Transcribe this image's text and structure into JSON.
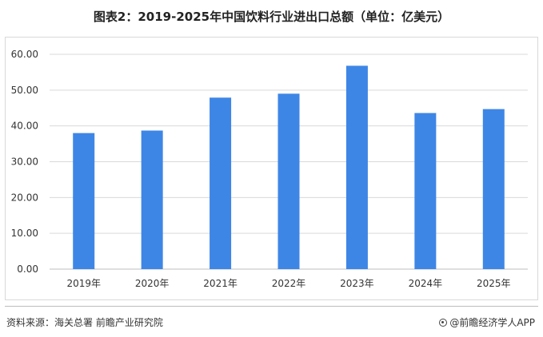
{
  "title": "图表2：2019-2025年中国饮料行业进出口总额（单位：亿美元）",
  "source": "资料来源：海关总署  前瞻产业研究院",
  "brand": "@前瞻经济学人APP",
  "colors": {
    "bar": "#3E86E6",
    "grid": "#d9d9d9",
    "axis": "#bfbfbf"
  },
  "chart_data": {
    "type": "bar",
    "title": "图表2：2019-2025年中国饮料行业进出口总额（单位：亿美元）",
    "categories": [
      "2019年",
      "2020年",
      "2021年",
      "2022年",
      "2023年",
      "2024年",
      "2025年"
    ],
    "values": [
      38.0,
      38.7,
      47.9,
      49.0,
      56.8,
      43.6,
      44.7
    ],
    "yticks": [
      "0.00",
      "10.00",
      "20.00",
      "30.00",
      "40.00",
      "50.00",
      "60.00"
    ],
    "ylim": [
      0,
      60
    ],
    "xlabel": "",
    "ylabel": "",
    "grid": true,
    "legend": "none"
  }
}
